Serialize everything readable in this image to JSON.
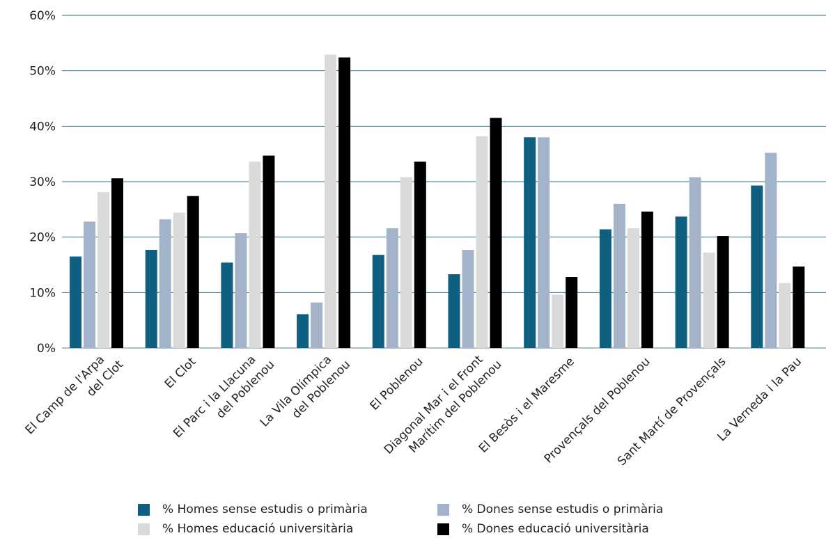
{
  "chart_data": {
    "type": "bar",
    "title": "",
    "xlabel": "",
    "ylabel": "",
    "ylim": [
      0,
      60
    ],
    "y_ticks": [
      "0%",
      "10%",
      "20%",
      "30%",
      "40%",
      "50%",
      "60%"
    ],
    "grid": true,
    "legend_position": "bottom",
    "categories": [
      [
        "El Camp de l'Arpa",
        "del Clot"
      ],
      [
        "El Clot"
      ],
      [
        "El Parc i la Llacuna",
        "del Poblenou"
      ],
      [
        "La Vila Olímpica",
        "del Poblenou"
      ],
      [
        "El Poblenou"
      ],
      [
        "Diagonal Mar i el Front",
        "Marítim del Poblenou"
      ],
      [
        "El Besòs i el Maresme"
      ],
      [
        "Provençals del Poblenou"
      ],
      [
        "Sant Martí de Provençals"
      ],
      [
        "La Verneda i la Pau"
      ]
    ],
    "series": [
      {
        "name": "% Homes sense estudis o primària",
        "color": "#0e5f80",
        "values": [
          16.5,
          17.7,
          15.4,
          6.1,
          16.8,
          13.3,
          38.0,
          21.4,
          23.7,
          29.3
        ]
      },
      {
        "name": "% Dones sense estudis o primària",
        "color": "#a3b3ca",
        "values": [
          22.8,
          23.2,
          20.7,
          8.2,
          21.6,
          17.7,
          38.0,
          26.0,
          30.8,
          35.2
        ]
      },
      {
        "name": "% Homes educació universitària",
        "color": "#dadada",
        "values": [
          28.1,
          24.4,
          33.6,
          52.9,
          30.8,
          38.2,
          9.6,
          21.6,
          17.2,
          11.7
        ]
      },
      {
        "name": "% Dones educació universitària",
        "color": "#000000",
        "values": [
          30.6,
          27.4,
          34.7,
          52.4,
          33.6,
          41.5,
          12.8,
          24.6,
          20.2,
          14.7
        ]
      }
    ],
    "grid_color": "#2e6f8c"
  }
}
